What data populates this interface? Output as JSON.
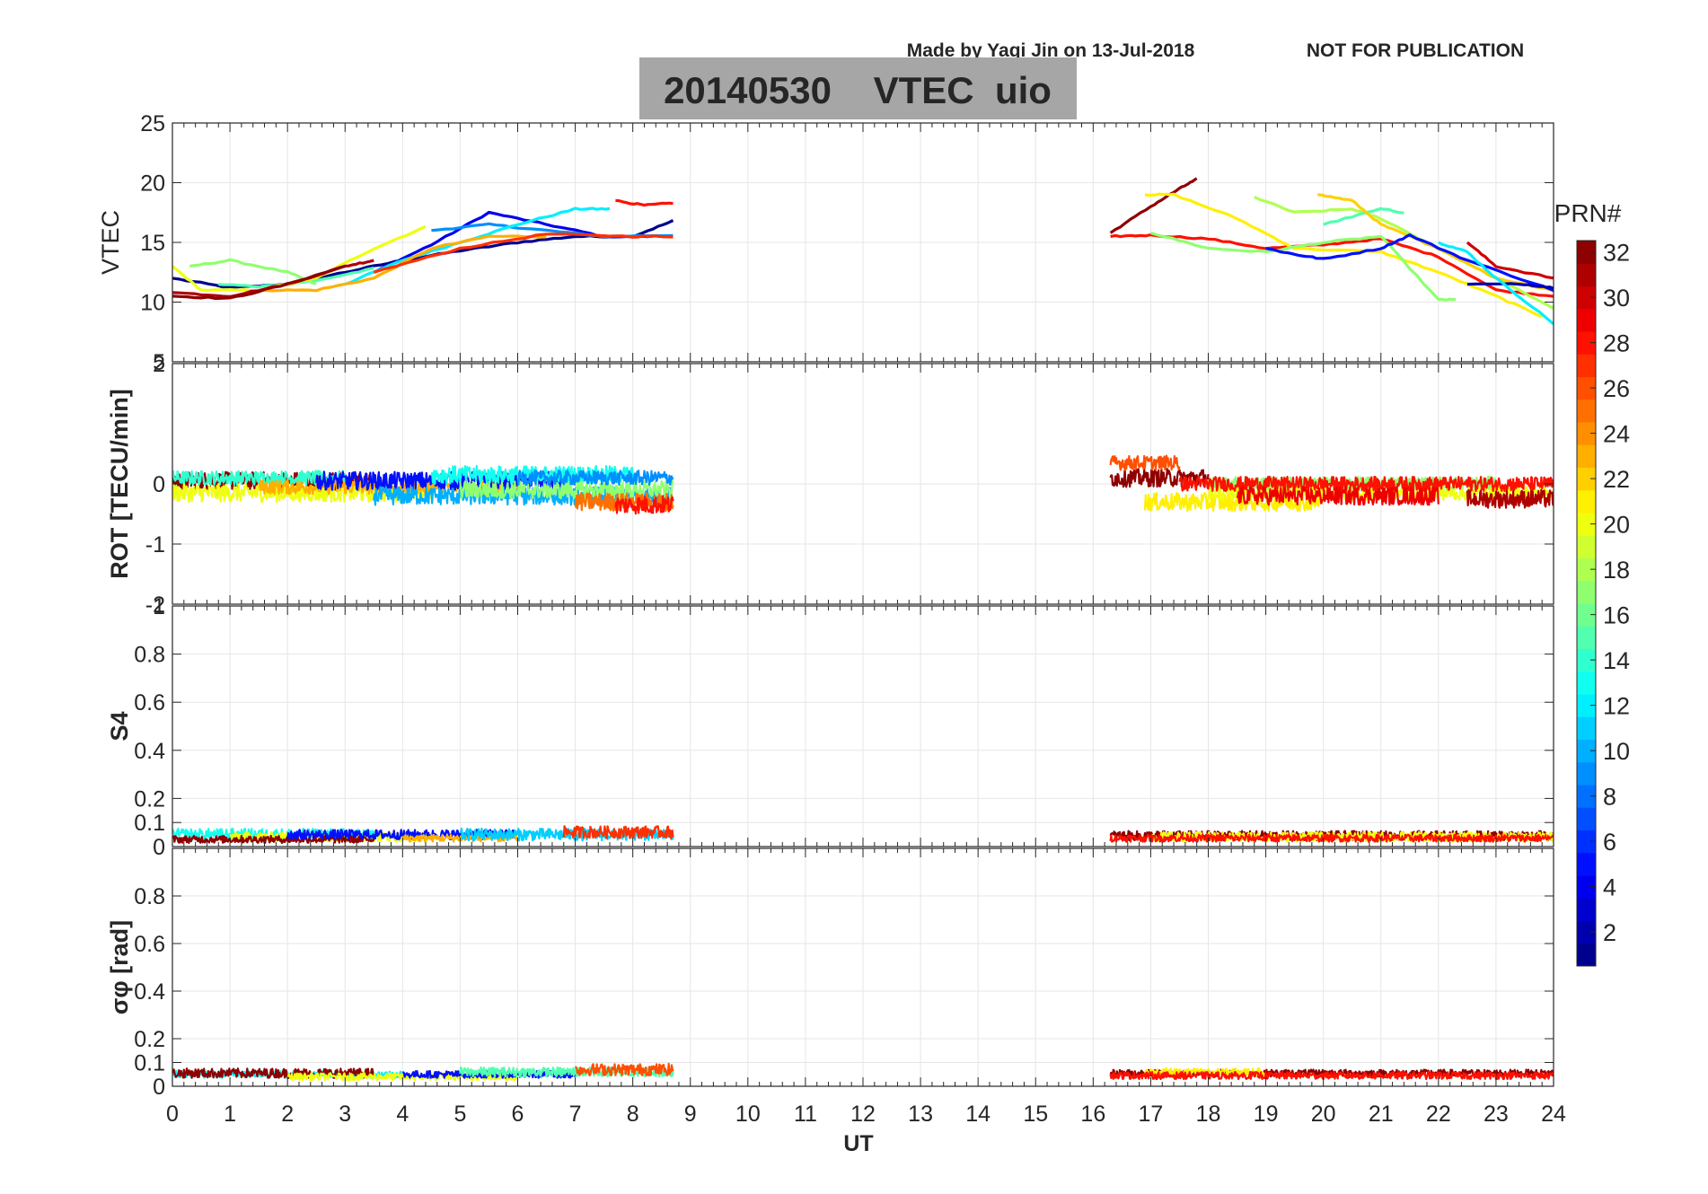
{
  "header": {
    "credit": "Made by Yaqi Jin on 13-Jul-2018",
    "notice": "NOT FOR PUBLICATION",
    "title": "20140530    VTEC  uio",
    "credit_color": "#0a14e6"
  },
  "colorbar": {
    "label": "PRN#",
    "ticks": [
      2,
      4,
      6,
      8,
      10,
      12,
      14,
      16,
      18,
      20,
      22,
      24,
      26,
      28,
      30,
      32
    ],
    "range": [
      1,
      32
    ],
    "colormap": "jet"
  },
  "chart_data": [
    {
      "type": "line",
      "panel": "vtec",
      "ylabel": "VTEC",
      "ylim": [
        5,
        25
      ],
      "yticks": [
        5,
        10,
        15,
        20,
        25
      ],
      "xlim": [
        0,
        24
      ],
      "grid": true,
      "series": [
        {
          "prn": 1,
          "x": [
            0,
            1,
            2,
            3,
            4,
            5,
            6,
            7,
            8,
            8.7
          ],
          "y": [
            12,
            11.2,
            11.5,
            12.5,
            13.5,
            14.3,
            15,
            15.5,
            15.5,
            16.8
          ]
        },
        {
          "prn": 4,
          "x": [
            3.5,
            4.5,
            5.5,
            6.5,
            7.5,
            8.7
          ],
          "y": [
            12.5,
            14.8,
            17.5,
            16.5,
            15.5,
            15.5
          ]
        },
        {
          "prn": 9,
          "x": [
            4.5,
            5.5,
            6.5,
            7.5,
            8.7
          ],
          "y": [
            16,
            16.5,
            16,
            15.5,
            15.6
          ]
        },
        {
          "prn": 12,
          "x": [
            3,
            4,
            5,
            6,
            7,
            7.6
          ],
          "y": [
            11.5,
            13.5,
            15,
            16.5,
            17.8,
            17.8
          ]
        },
        {
          "prn": 15,
          "x": [
            0.8,
            1.5,
            2.5,
            3.5
          ],
          "y": [
            11.5,
            11.3,
            11.8,
            12.8
          ]
        },
        {
          "prn": 17,
          "x": [
            0.3,
            1,
            2,
            2.5
          ],
          "y": [
            13,
            13.5,
            12.5,
            11.5
          ]
        },
        {
          "prn": 20,
          "x": [
            0,
            0.5,
            1.5,
            2.5,
            3.5,
            4.4
          ],
          "y": [
            13,
            11,
            11,
            12,
            14.5,
            16.3
          ]
        },
        {
          "prn": 23,
          "x": [
            1.5,
            2.5,
            3.5,
            4.5,
            5.5,
            6.5
          ],
          "y": [
            11,
            11,
            12,
            14.5,
            15.5,
            15.5
          ]
        },
        {
          "prn": 28,
          "x": [
            7.7,
            8.2,
            8.7
          ],
          "y": [
            18.5,
            18.1,
            18.3
          ]
        },
        {
          "prn": 27,
          "x": [
            3.5,
            5,
            6.5,
            8,
            8.7
          ],
          "y": [
            12.5,
            14.5,
            15.7,
            15.5,
            15.5
          ]
        },
        {
          "prn": 31,
          "x": [
            0,
            1,
            2,
            3,
            3.5
          ],
          "y": [
            10.8,
            10.5,
            11.5,
            13,
            13.5
          ]
        },
        {
          "prn": 32,
          "x": [
            0,
            1,
            2,
            3
          ],
          "y": [
            10.5,
            10.3,
            11.5,
            13
          ]
        },
        {
          "prn": 32,
          "x": [
            16.3,
            17,
            17.5,
            17.8
          ],
          "y": [
            15.8,
            18,
            19.5,
            20.3
          ]
        },
        {
          "prn": 28,
          "x": [
            16.3,
            17,
            18,
            19,
            20,
            21,
            22,
            23,
            24
          ],
          "y": [
            15.5,
            15.6,
            15.3,
            14.5,
            14.8,
            15.3,
            13.8,
            11,
            10.5
          ]
        },
        {
          "prn": 21,
          "x": [
            16.9,
            17.4,
            18.5,
            19.5,
            21,
            22,
            23,
            23.8
          ],
          "y": [
            19,
            19,
            17,
            14.5,
            14.2,
            12.5,
            10.5,
            8.8
          ]
        },
        {
          "prn": 17,
          "x": [
            17,
            18,
            19,
            20,
            21,
            22,
            22.3
          ],
          "y": [
            15.8,
            14.5,
            14.2,
            15,
            15.5,
            10.2,
            10.2
          ]
        },
        {
          "prn": 18,
          "x": [
            18.8,
            19.5,
            20.5,
            21,
            22,
            23,
            24
          ],
          "y": [
            18.8,
            17.5,
            17.8,
            17,
            14.5,
            12,
            9.5
          ]
        },
        {
          "prn": 15,
          "x": [
            20,
            21,
            21.4
          ],
          "y": [
            16.5,
            17.8,
            17.5
          ]
        },
        {
          "prn": 22,
          "x": [
            19.9,
            20.5,
            21,
            21.5,
            22,
            23,
            24
          ],
          "y": [
            19,
            18.5,
            16.5,
            15.5,
            14.5,
            12,
            11
          ]
        },
        {
          "prn": 5,
          "x": [
            19,
            19.5,
            20,
            21,
            21.5,
            22.5,
            24
          ],
          "y": [
            14.5,
            14,
            13.6,
            14.5,
            15.6,
            13.5,
            11
          ]
        },
        {
          "prn": 2,
          "x": [
            22.5,
            23.5,
            24
          ],
          "y": [
            11.5,
            11.5,
            11.2
          ]
        },
        {
          "prn": 12,
          "x": [
            22,
            22.5,
            23,
            24
          ],
          "y": [
            15,
            14.2,
            12,
            8.2
          ]
        },
        {
          "prn": 30,
          "x": [
            22.5,
            23,
            24
          ],
          "y": [
            15,
            13,
            12
          ]
        }
      ]
    },
    {
      "type": "line",
      "panel": "rot",
      "ylabel": "ROT [TECU/min]",
      "ylim": [
        -2,
        2
      ],
      "yticks": [
        -2,
        -1,
        0,
        2
      ],
      "ytick_labels": [
        "-2",
        "-1",
        "0",
        "2"
      ],
      "xlim": [
        0,
        24
      ],
      "grid": true,
      "series": [
        {
          "prn": 32,
          "x_range": [
            0,
            3.5
          ],
          "center": 0.05,
          "spread": 0.15
        },
        {
          "prn": 14,
          "x_range": [
            0,
            3
          ],
          "center": 0.1,
          "spread": 0.12
        },
        {
          "prn": 20,
          "x_range": [
            0,
            4.5
          ],
          "center": -0.15,
          "spread": 0.15
        },
        {
          "prn": 23,
          "x_range": [
            1.5,
            6
          ],
          "center": -0.05,
          "spread": 0.12
        },
        {
          "prn": 5,
          "x_range": [
            2.5,
            7
          ],
          "center": 0.05,
          "spread": 0.15
        },
        {
          "prn": 10,
          "x_range": [
            3.5,
            8.7
          ],
          "center": -0.2,
          "spread": 0.15
        },
        {
          "prn": 13,
          "x_range": [
            4.5,
            8
          ],
          "center": 0.15,
          "spread": 0.15
        },
        {
          "prn": 17,
          "x_range": [
            5,
            8.7
          ],
          "center": -0.1,
          "spread": 0.15
        },
        {
          "prn": 9,
          "x_range": [
            6,
            8.7
          ],
          "center": 0.1,
          "spread": 0.12
        },
        {
          "prn": 25,
          "x_range": [
            7,
            8.7
          ],
          "center": -0.3,
          "spread": 0.15
        },
        {
          "prn": 28,
          "x_range": [
            7.7,
            8.7
          ],
          "center": -0.35,
          "spread": 0.15
        },
        {
          "prn": 32,
          "x_range": [
            16.3,
            18
          ],
          "center": 0.1,
          "spread": 0.15
        },
        {
          "prn": 26,
          "x_range": [
            16.3,
            17.5
          ],
          "center": 0.35,
          "spread": 0.12
        },
        {
          "prn": 21,
          "x_range": [
            16.9,
            20
          ],
          "center": -0.3,
          "spread": 0.15
        },
        {
          "prn": 17,
          "x_range": [
            18,
            23
          ],
          "center": 0,
          "spread": 0.12
        },
        {
          "prn": 20,
          "x_range": [
            18,
            24
          ],
          "center": -0.15,
          "spread": 0.12
        },
        {
          "prn": 28,
          "x_range": [
            17.5,
            24
          ],
          "center": 0,
          "spread": 0.12
        },
        {
          "prn": 29,
          "x_range": [
            18.5,
            22
          ],
          "center": -0.2,
          "spread": 0.15
        },
        {
          "prn": 31,
          "x_range": [
            22.5,
            24
          ],
          "center": -0.25,
          "spread": 0.15
        }
      ]
    },
    {
      "type": "line",
      "panel": "s4",
      "ylabel": "S4",
      "ylim": [
        0,
        1
      ],
      "yticks": [
        0,
        0.1,
        0.2,
        0.4,
        0.6,
        0.8,
        1
      ],
      "ytick_labels": [
        "0",
        "0.1",
        "0.2",
        "0.4",
        "0.6",
        "0.8",
        "1"
      ],
      "xlim": [
        0,
        24
      ],
      "grid": true,
      "series": [
        {
          "prn": 13,
          "x_range": [
            0,
            3.5
          ],
          "center": 0.05,
          "spread": 0.025
        },
        {
          "prn": 20,
          "x_range": [
            1,
            4.5
          ],
          "center": 0.04,
          "spread": 0.02
        },
        {
          "prn": 32,
          "x_range": [
            0,
            3.5
          ],
          "center": 0.03,
          "spread": 0.015
        },
        {
          "prn": 5,
          "x_range": [
            2,
            6
          ],
          "center": 0.05,
          "spread": 0.02
        },
        {
          "prn": 23,
          "x_range": [
            4,
            6
          ],
          "center": 0.035,
          "spread": 0.015
        },
        {
          "prn": 11,
          "x_range": [
            5,
            8.7
          ],
          "center": 0.05,
          "spread": 0.025
        },
        {
          "prn": 27,
          "x_range": [
            6.8,
            8.7
          ],
          "center": 0.06,
          "spread": 0.025
        },
        {
          "prn": 32,
          "x_range": [
            16.3,
            24
          ],
          "center": 0.045,
          "spread": 0.02
        },
        {
          "prn": 20,
          "x_range": [
            17,
            24
          ],
          "center": 0.04,
          "spread": 0.02
        },
        {
          "prn": 28,
          "x_range": [
            16.3,
            24
          ],
          "center": 0.035,
          "spread": 0.015
        }
      ]
    },
    {
      "type": "line",
      "panel": "sigma_phi",
      "ylabel": "σφ [rad]",
      "ylim": [
        0,
        1
      ],
      "yticks": [
        0,
        0.1,
        0.2,
        0.4,
        0.6,
        0.8
      ],
      "ytick_labels": [
        "0",
        "0.1",
        "0.2",
        "0.4",
        "0.6",
        "0.8"
      ],
      "xlim": [
        0,
        24
      ],
      "xticks": [
        0,
        1,
        2,
        3,
        4,
        5,
        6,
        7,
        8,
        9,
        10,
        11,
        12,
        13,
        14,
        15,
        16,
        17,
        18,
        19,
        20,
        21,
        22,
        23,
        24
      ],
      "xlabel": "UT",
      "grid": true,
      "series": [
        {
          "prn": 12,
          "x_range": [
            0,
            4
          ],
          "center": 0.05,
          "spread": 0.015
        },
        {
          "prn": 32,
          "x_range": [
            0,
            3.5
          ],
          "center": 0.055,
          "spread": 0.02
        },
        {
          "prn": 20,
          "x_range": [
            2,
            6
          ],
          "center": 0.04,
          "spread": 0.015
        },
        {
          "prn": 5,
          "x_range": [
            4,
            7
          ],
          "center": 0.05,
          "spread": 0.015
        },
        {
          "prn": 15,
          "x_range": [
            5,
            8.7
          ],
          "center": 0.06,
          "spread": 0.02
        },
        {
          "prn": 26,
          "x_range": [
            7,
            8.7
          ],
          "center": 0.07,
          "spread": 0.025
        },
        {
          "prn": 32,
          "x_range": [
            16.3,
            24
          ],
          "center": 0.055,
          "spread": 0.015
        },
        {
          "prn": 21,
          "x_range": [
            16.9,
            19
          ],
          "center": 0.06,
          "spread": 0.015
        },
        {
          "prn": 28,
          "x_range": [
            16.3,
            24
          ],
          "center": 0.045,
          "spread": 0.015
        }
      ]
    }
  ]
}
